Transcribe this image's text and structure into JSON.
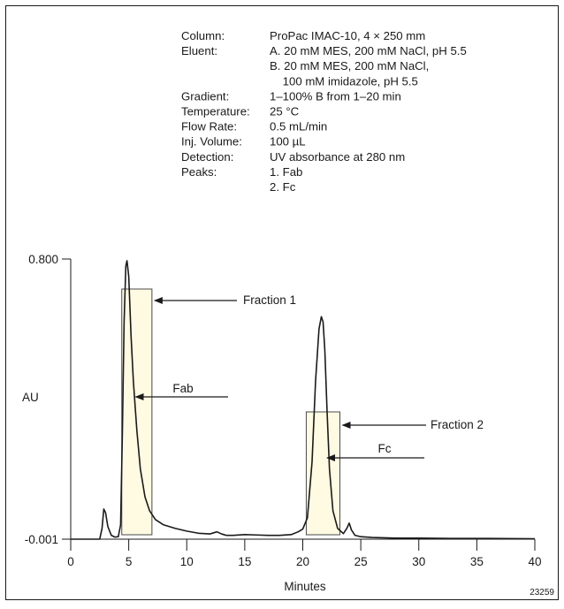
{
  "conditions": [
    {
      "label": "Column:",
      "lines": [
        "ProPac IMAC-10, 4 × 250 mm"
      ]
    },
    {
      "label": "Eluent:",
      "lines": [
        "A. 20 mM MES, 200 mM NaCl, pH 5.5",
        "B. 20 mM MES, 200 mM NaCl,",
        "    100 mM imidazole, pH 5.5"
      ]
    },
    {
      "label": "Gradient:",
      "lines": [
        "1–100% B from 1–20 min"
      ]
    },
    {
      "label": "Temperature:",
      "lines": [
        "25 °C"
      ]
    },
    {
      "label": "Flow Rate:",
      "lines": [
        "0.5 mL/min"
      ]
    },
    {
      "label": "Inj. Volume:",
      "lines": [
        "100 µL"
      ]
    },
    {
      "label": "Detection:",
      "lines": [
        "UV absorbance at 280 nm"
      ]
    },
    {
      "label": "Peaks:",
      "lines": [
        "1. Fab",
        "2. Fc"
      ]
    }
  ],
  "figure_id": "23259",
  "chart_data": {
    "type": "line",
    "xlabel": "Minutes",
    "ylabel": "AU",
    "xlim": [
      0,
      40
    ],
    "ylim": [
      -0.001,
      0.8
    ],
    "x_ticks": [
      0,
      5,
      10,
      15,
      20,
      25,
      30,
      35,
      40
    ],
    "x_tick_labels": [
      "0",
      "5",
      "10",
      "15",
      "20",
      "25",
      "30",
      "35",
      "40"
    ],
    "y_ticks": [
      -0.001,
      0.8
    ],
    "y_tick_labels": [
      "-0.001",
      "0.800"
    ],
    "grid": false,
    "series": [
      {
        "color": "#1a1a1a",
        "x": [
          0,
          2.5,
          2.7,
          2.85,
          3.0,
          3.2,
          3.5,
          3.8,
          4.1,
          4.3,
          4.45,
          4.6,
          4.75,
          4.85,
          5.0,
          5.2,
          5.4,
          5.7,
          6.0,
          6.4,
          6.8,
          7.3,
          8.0,
          9.0,
          10.0,
          11.0,
          12.0,
          12.6,
          13.0,
          13.4,
          14.0,
          15.0,
          16.0,
          17.0,
          18.0,
          19.0,
          19.6,
          20.0,
          20.4,
          20.8,
          21.1,
          21.4,
          21.6,
          21.75,
          21.9,
          22.1,
          22.3,
          22.6,
          23.0,
          23.5,
          23.8,
          24.0,
          24.2,
          24.5,
          25.0,
          26.0,
          27.0,
          28.0,
          30.0,
          33.0,
          36.0,
          40.0
        ],
        "y": [
          -0.001,
          -0.001,
          0.03,
          0.085,
          0.075,
          0.035,
          0.01,
          0.005,
          0.006,
          0.04,
          0.3,
          0.62,
          0.78,
          0.795,
          0.75,
          0.58,
          0.45,
          0.31,
          0.2,
          0.12,
          0.08,
          0.055,
          0.04,
          0.03,
          0.022,
          0.016,
          0.014,
          0.02,
          0.014,
          0.01,
          0.01,
          0.012,
          0.011,
          0.01,
          0.01,
          0.012,
          0.02,
          0.028,
          0.06,
          0.22,
          0.45,
          0.6,
          0.635,
          0.62,
          0.54,
          0.36,
          0.2,
          0.08,
          0.03,
          0.015,
          0.03,
          0.045,
          0.025,
          0.01,
          0.006,
          0.004,
          0.003,
          0.002,
          0.002,
          0.001,
          0.001,
          0.0
        ]
      }
    ],
    "fractions": [
      {
        "label": "Fraction 1",
        "x_range": [
          4.4,
          7.0
        ]
      },
      {
        "label": "Fraction 2",
        "x_range": [
          20.3,
          23.2
        ]
      }
    ],
    "annotations": [
      {
        "text": "Fab",
        "x": 5.6,
        "y": 0.39
      },
      {
        "text": "Fc",
        "x": 22.1,
        "y": 0.22
      }
    ]
  }
}
